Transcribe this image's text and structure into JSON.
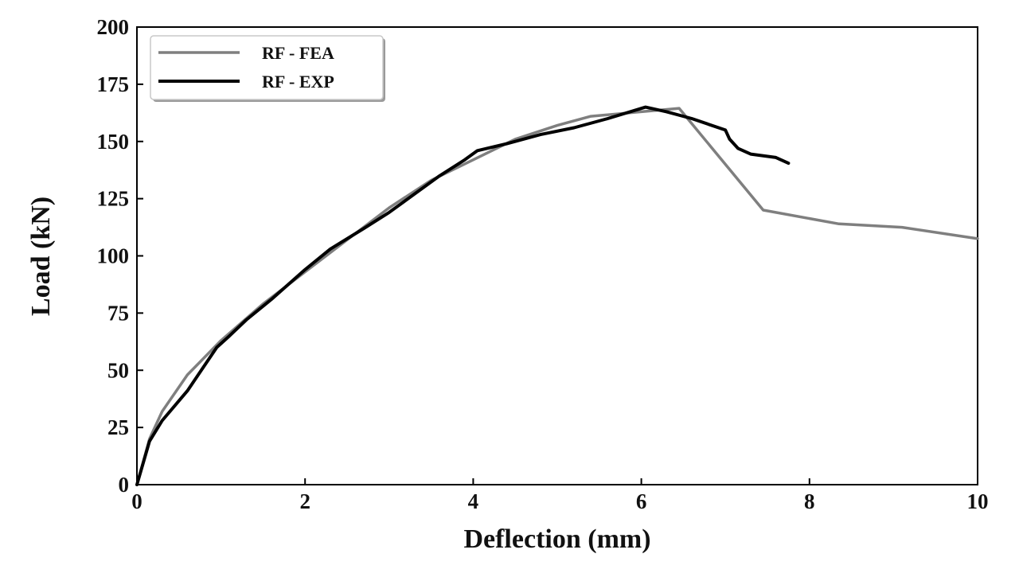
{
  "chart_data": {
    "type": "line",
    "title": "",
    "xlabel": "Deflection (mm)",
    "ylabel": "Load (kN)",
    "xlim": [
      0,
      10
    ],
    "ylim": [
      0,
      200
    ],
    "x_ticks": [
      0,
      2,
      4,
      6,
      8,
      10
    ],
    "y_ticks": [
      0,
      25,
      50,
      75,
      100,
      125,
      150,
      175,
      200
    ],
    "grid": false,
    "legend_position": "top-left",
    "series": [
      {
        "name": "RF - FEA",
        "color": "#7f7f7f",
        "x": [
          0,
          0.15,
          0.3,
          0.6,
          1.0,
          1.5,
          2.0,
          2.5,
          3.0,
          3.5,
          4.0,
          4.5,
          5.0,
          5.4,
          6.0,
          6.45,
          7.0,
          7.45,
          8.35,
          9.1,
          10.0
        ],
        "y": [
          0,
          20,
          32,
          48,
          63,
          79,
          93,
          107,
          121,
          133,
          142,
          151,
          157,
          161,
          163,
          164.5,
          140,
          120,
          114,
          112.5,
          107.5
        ]
      },
      {
        "name": "RF - EXP",
        "color": "#000000",
        "x": [
          0,
          0.15,
          0.3,
          0.6,
          0.95,
          1.1,
          1.3,
          1.6,
          2.0,
          2.3,
          2.7,
          3.0,
          3.3,
          3.6,
          3.9,
          4.05,
          4.4,
          4.8,
          5.2,
          5.6,
          6.05,
          6.3,
          6.6,
          7.0,
          7.05,
          7.15,
          7.3,
          7.6,
          7.75
        ],
        "y": [
          0,
          19,
          28,
          41,
          60,
          65,
          72,
          81,
          94,
          103,
          112,
          119,
          127,
          135,
          142,
          146,
          149,
          153,
          156,
          160,
          165,
          163,
          160,
          155,
          151,
          147,
          144.5,
          143,
          140.5
        ]
      }
    ]
  }
}
